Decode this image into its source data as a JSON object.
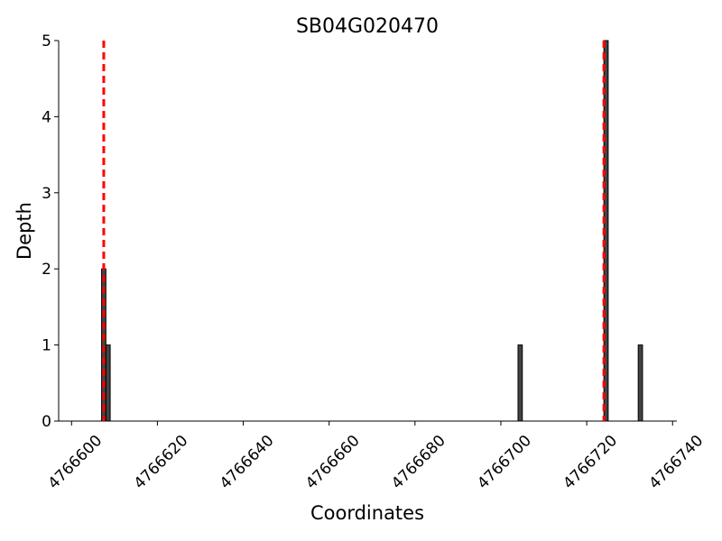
{
  "chart_data": {
    "type": "bar",
    "title": "SB04G020470",
    "x_label": "Coordinates",
    "y_label": "Depth",
    "x": [
      4766607,
      4766608,
      4766704,
      4766724,
      4766732
    ],
    "values": [
      2,
      1,
      1,
      5,
      1
    ],
    "color": "#444444",
    "edge_color": "#000000",
    "vlines": [
      4766607.5,
      4766724
    ],
    "vline_color": "#ff0000",
    "xlim": [
      4766597,
      4766741
    ],
    "xticks": [
      4766600,
      4766620,
      4766640,
      4766660,
      4766680,
      4766700,
      4766720,
      4766740
    ],
    "ylim": [
      0,
      5
    ],
    "yticks": [
      0,
      1,
      2,
      3,
      4,
      5
    ]
  }
}
